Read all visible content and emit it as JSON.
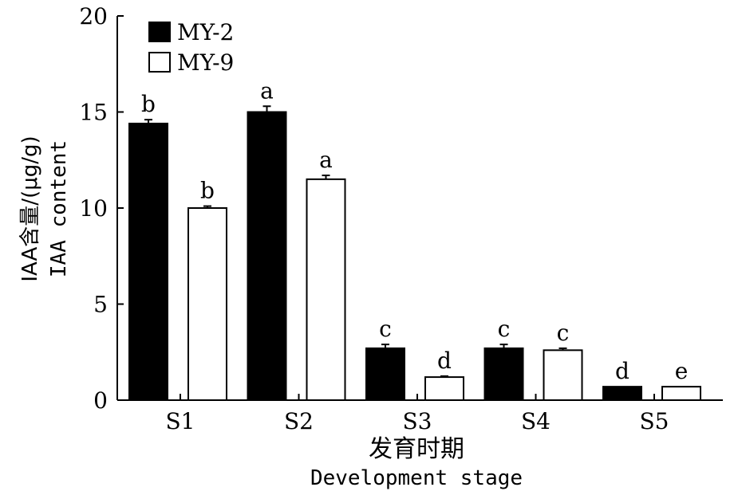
{
  "chart_data": {
    "type": "bar",
    "categories": [
      "S1",
      "S2",
      "S3",
      "S4",
      "S5"
    ],
    "series": [
      {
        "name": "MY-2",
        "color": "#000000",
        "values": [
          14.4,
          15.0,
          2.7,
          2.7,
          0.7
        ],
        "errors": [
          0.2,
          0.3,
          0.2,
          0.2,
          0.0
        ],
        "labels": [
          "b",
          "a",
          "c",
          "c",
          "d"
        ]
      },
      {
        "name": "MY-9",
        "color": "#ffffff",
        "values": [
          10.0,
          11.5,
          1.2,
          2.6,
          0.7
        ],
        "errors": [
          0.1,
          0.2,
          0.05,
          0.1,
          0.0
        ],
        "labels": [
          "b",
          "a",
          "d",
          "c",
          "e"
        ]
      }
    ],
    "ylim": [
      0,
      20
    ],
    "yticks": [
      "0",
      "5",
      "10",
      "15",
      "20"
    ],
    "ylabel_cn": "IAA含量/(μg/g)",
    "ylabel_en": "IAA content",
    "xlabel_cn": "发育时期",
    "xlabel_en": "Development stage",
    "legend_position": "top-left",
    "grid": false
  }
}
